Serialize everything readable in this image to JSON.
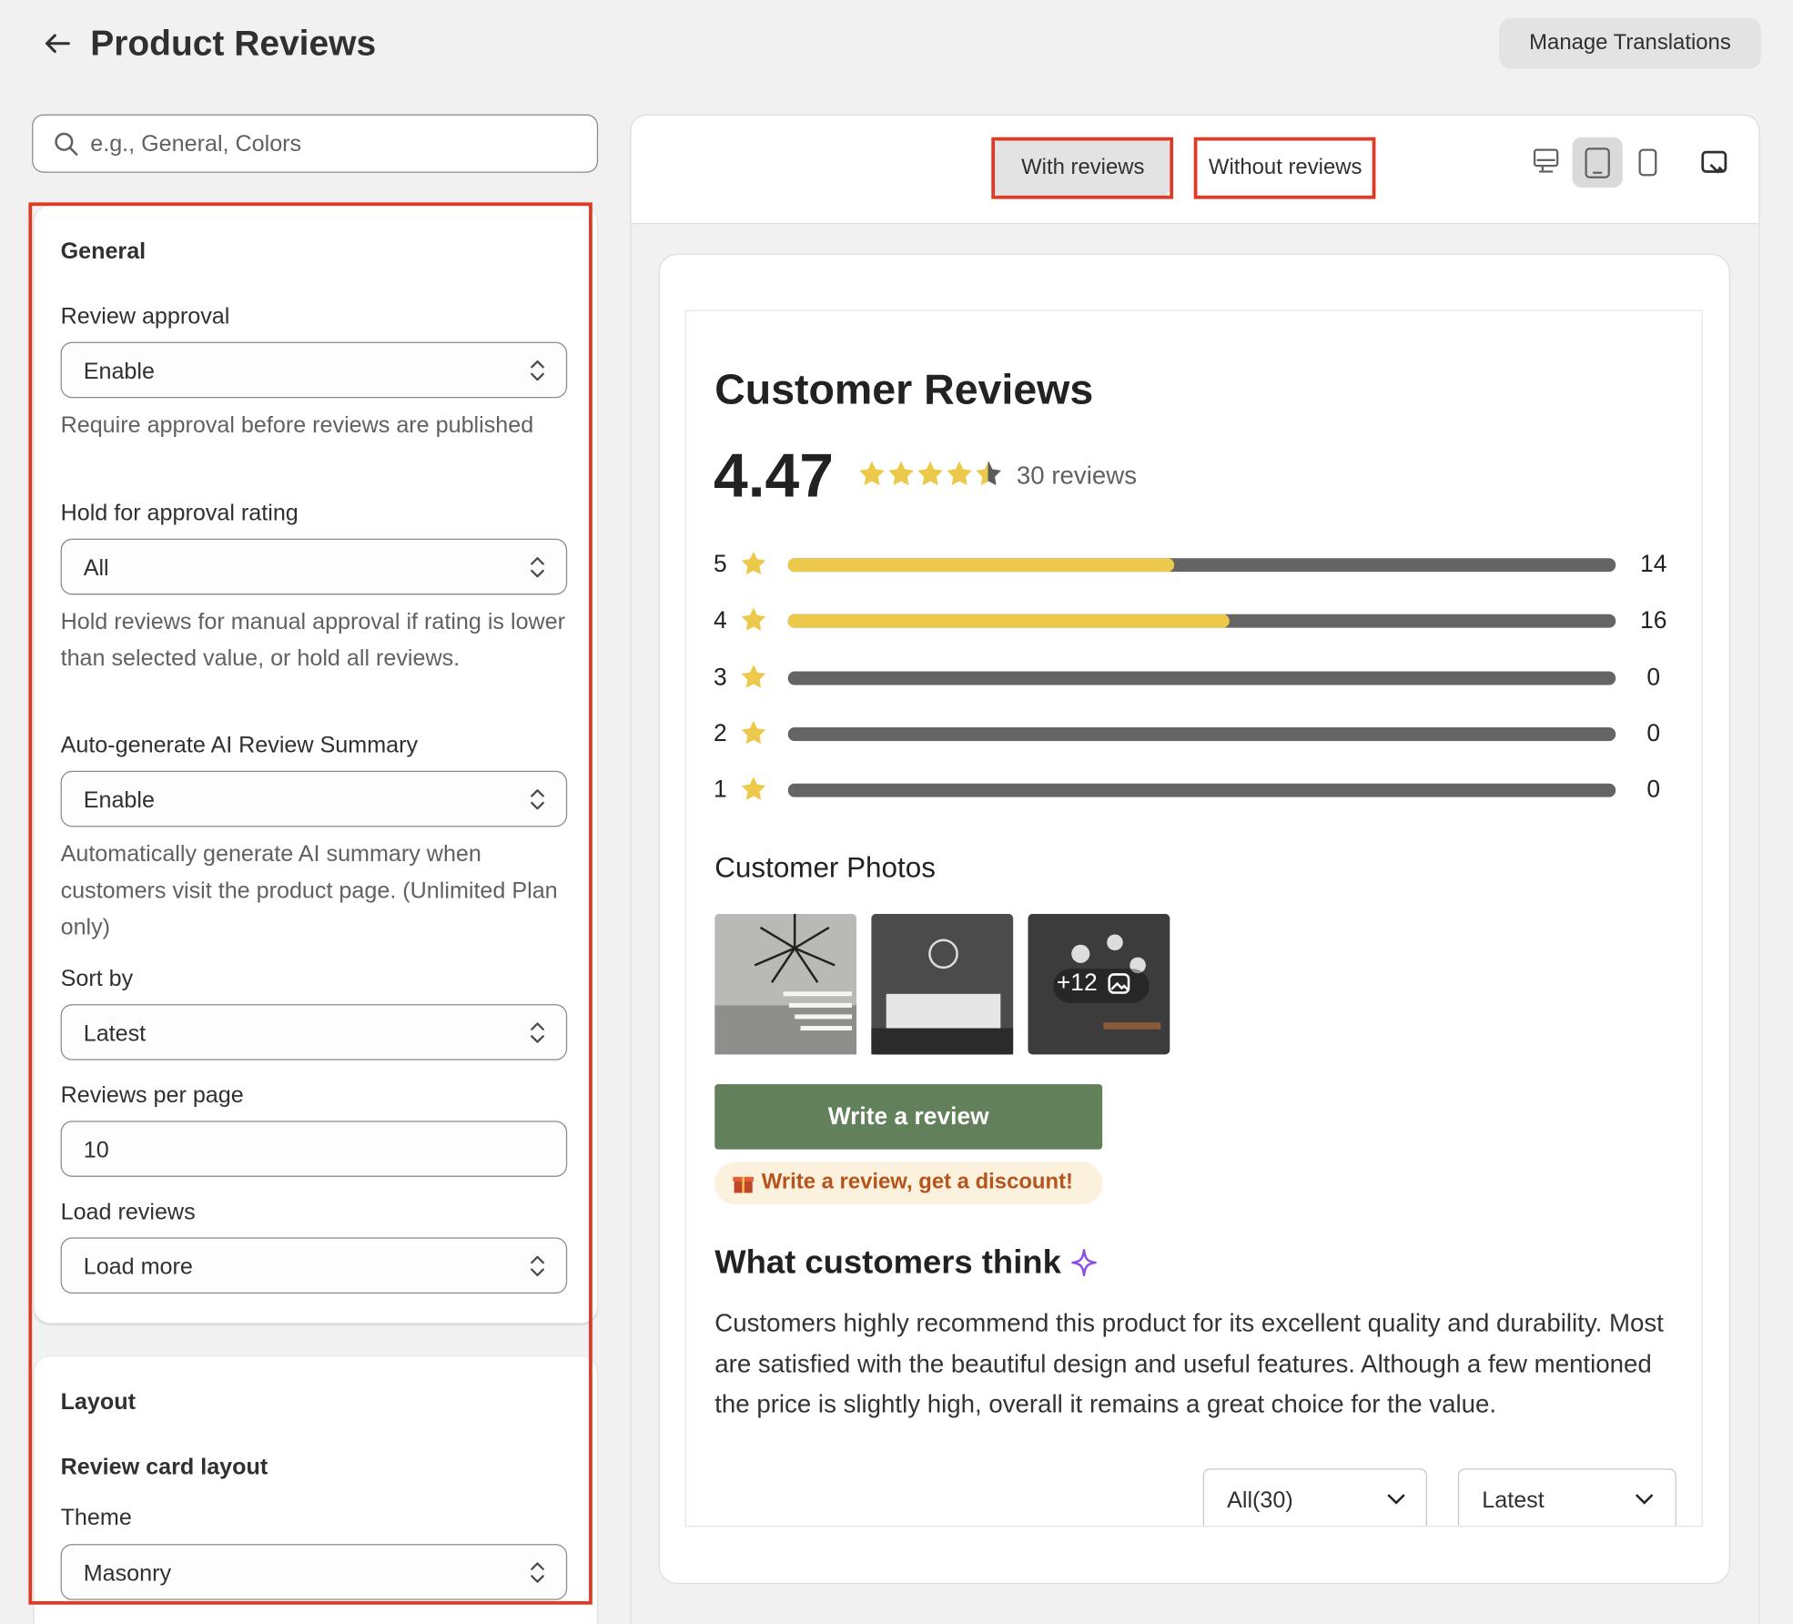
{
  "header": {
    "title": "Product Reviews",
    "button": "Manage Translations"
  },
  "search": {
    "placeholder": "e.g., General, Colors"
  },
  "general": {
    "title": "General",
    "fields": [
      {
        "label": "Review approval",
        "value": "Enable",
        "help": "Require approval before reviews are published"
      },
      {
        "label": "Hold for approval rating",
        "value": "All",
        "help": "Hold reviews for manual approval if rating is lower than selected value, or hold all reviews."
      },
      {
        "label": "Auto-generate AI Review Summary",
        "value": "Enable",
        "help": "Automatically generate AI summary when customers visit the product page. (Unlimited Plan only)"
      },
      {
        "label": "Sort by",
        "value": "Latest"
      },
      {
        "label": "Reviews per page",
        "value": "10"
      },
      {
        "label": "Load reviews",
        "value": "Load more"
      }
    ]
  },
  "layout": {
    "title": "Layout",
    "subtitle": "Review card layout",
    "fields": [
      {
        "label": "Theme",
        "value": "Masonry"
      }
    ]
  },
  "preview": {
    "tabs": [
      "With reviews",
      "Without reviews"
    ],
    "title": "Customer Reviews",
    "rating": 4.47,
    "review_count": "30 reviews",
    "distribution": [
      {
        "stars": 5,
        "count": 14
      },
      {
        "stars": 4,
        "count": 16
      },
      {
        "stars": 3,
        "count": 0
      },
      {
        "stars": 2,
        "count": 0
      },
      {
        "stars": 1,
        "count": 0
      }
    ],
    "photos_title": "Customer Photos",
    "more_photos": "+12",
    "write_button": "Write a review",
    "discount": "Write a review, get a discount!",
    "summary_title": "What customers think",
    "summary": "Customers highly recommend this product for its excellent quality and durability. Most are satisfied with the beautiful design and useful features. Although a few mentioned the price is slightly high, overall it remains a great choice for the value.",
    "filters": [
      "All(30)",
      "Latest"
    ]
  }
}
